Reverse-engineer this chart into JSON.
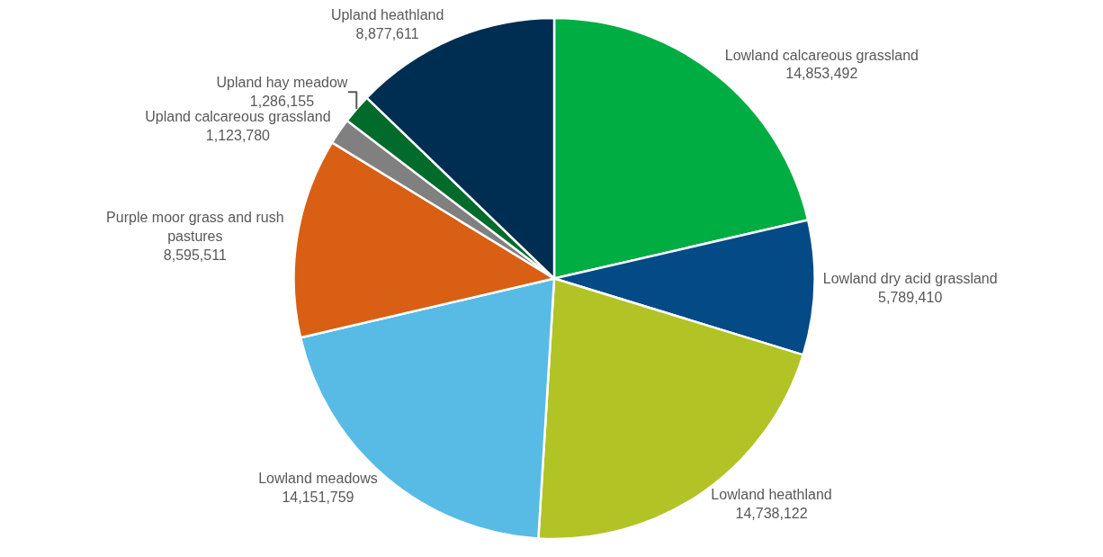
{
  "chart_data": {
    "type": "pie",
    "categories": [
      "Lowland calcareous grassland",
      "Lowland dry acid grassland",
      "Lowland heathland",
      "Lowland meadows",
      "Purple moor grass and rush pastures",
      "Upland calcareous grassland",
      "Upland hay meadow",
      "Upland heathland"
    ],
    "values": [
      14853492,
      5789410,
      14738122,
      14151759,
      8595511,
      1123780,
      1286155,
      8877611
    ],
    "colors": [
      "#00ad43",
      "#034a87",
      "#b2c325",
      "#57bbe6",
      "#d95f14",
      "#808080",
      "#006b2a",
      "#002d52"
    ],
    "value_labels": [
      "14,853,492",
      "5,789,410",
      "14,738,122",
      "14,151,759",
      "8,595,511",
      "1,123,780",
      "1,286,155",
      "8,877,611"
    ]
  }
}
